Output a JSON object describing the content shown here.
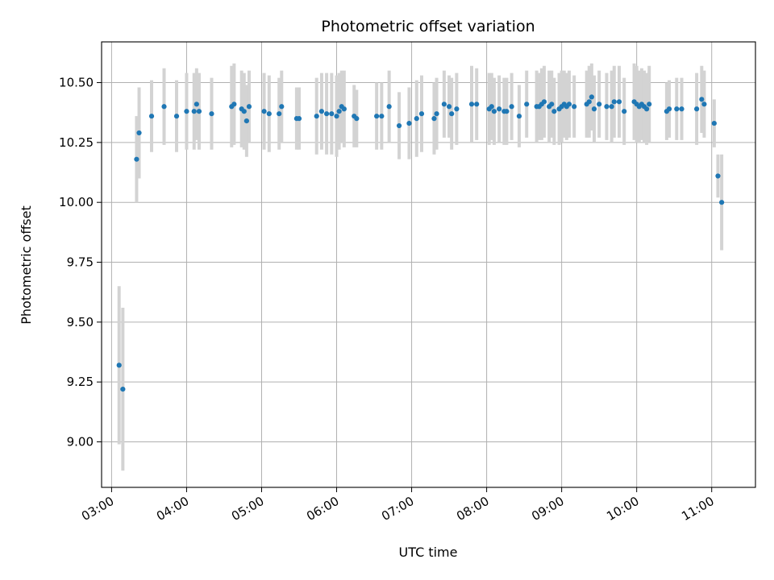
{
  "chart_data": {
    "type": "scatter",
    "title": "Photometric offset variation",
    "xlabel": "UTC time",
    "ylabel": "Photometric offset",
    "x_unit": "UTC time (HH:MM)",
    "xlim": [
      "02:52",
      "11:35"
    ],
    "ylim": [
      8.81,
      10.67
    ],
    "x_ticks": [
      "03:00",
      "04:00",
      "05:00",
      "06:00",
      "07:00",
      "08:00",
      "09:00",
      "10:00",
      "11:00"
    ],
    "y_ticks": [
      "9.00",
      "9.25",
      "9.50",
      "9.75",
      "10.00",
      "10.25",
      "10.50"
    ],
    "grid": true,
    "point_color": "#1f77b4",
    "errorbar_color": "#d3d3d3",
    "series": [
      {
        "x": [
          "03:06",
          "03:09",
          "03:20",
          "03:22",
          "03:32",
          "03:42",
          "03:52",
          "04:00",
          "04:06",
          "04:08",
          "04:10",
          "04:20",
          "04:36",
          "04:38",
          "04:44",
          "04:46",
          "04:48",
          "04:50",
          "05:02",
          "05:06",
          "05:14",
          "05:16",
          "05:28",
          "05:30",
          "05:44",
          "05:48",
          "05:52",
          "05:56",
          "06:00",
          "06:02",
          "06:04",
          "06:06",
          "06:14",
          "06:16",
          "06:32",
          "06:36",
          "06:42",
          "06:50",
          "06:58",
          "07:04",
          "07:08",
          "07:18",
          "07:20",
          "07:26",
          "07:30",
          "07:32",
          "07:36",
          "07:48",
          "07:52",
          "08:02",
          "08:04",
          "08:06",
          "08:10",
          "08:14",
          "08:16",
          "08:20",
          "08:26",
          "08:32",
          "08:40",
          "08:42",
          "08:44",
          "08:46",
          "08:50",
          "08:52",
          "08:54",
          "08:58",
          "09:00",
          "09:02",
          "09:04",
          "09:06",
          "09:10",
          "09:20",
          "09:22",
          "09:24",
          "09:26",
          "09:30",
          "09:36",
          "09:40",
          "09:42",
          "09:46",
          "09:50",
          "09:58",
          "10:00",
          "10:02",
          "10:04",
          "10:06",
          "10:08",
          "10:10",
          "10:24",
          "10:26",
          "10:32",
          "10:36",
          "10:48",
          "10:52",
          "10:54",
          "11:02",
          "11:05",
          "11:08"
        ],
        "y": [
          9.32,
          9.22,
          10.18,
          10.29,
          10.36,
          10.4,
          10.36,
          10.38,
          10.38,
          10.41,
          10.38,
          10.37,
          10.4,
          10.41,
          10.39,
          10.38,
          10.34,
          10.4,
          10.38,
          10.37,
          10.37,
          10.4,
          10.35,
          10.35,
          10.36,
          10.38,
          10.37,
          10.37,
          10.36,
          10.38,
          10.4,
          10.39,
          10.36,
          10.35,
          10.36,
          10.36,
          10.4,
          10.32,
          10.33,
          10.35,
          10.37,
          10.35,
          10.37,
          10.41,
          10.4,
          10.37,
          10.39,
          10.41,
          10.41,
          10.39,
          10.4,
          10.38,
          10.39,
          10.38,
          10.38,
          10.4,
          10.36,
          10.41,
          10.4,
          10.4,
          10.41,
          10.42,
          10.4,
          10.41,
          10.38,
          10.39,
          10.4,
          10.41,
          10.4,
          10.41,
          10.4,
          10.41,
          10.42,
          10.44,
          10.39,
          10.41,
          10.4,
          10.4,
          10.42,
          10.42,
          10.38,
          10.42,
          10.41,
          10.4,
          10.41,
          10.4,
          10.39,
          10.41,
          10.38,
          10.39,
          10.39,
          10.39,
          10.39,
          10.43,
          10.41,
          10.33,
          10.11,
          10.0
        ],
        "yerr": [
          0.33,
          0.34,
          0.18,
          0.19,
          0.15,
          0.16,
          0.15,
          0.16,
          0.16,
          0.15,
          0.16,
          0.15,
          0.17,
          0.17,
          0.16,
          0.16,
          0.15,
          0.15,
          0.16,
          0.16,
          0.15,
          0.15,
          0.13,
          0.13,
          0.16,
          0.16,
          0.17,
          0.17,
          0.17,
          0.16,
          0.15,
          0.16,
          0.13,
          0.12,
          0.14,
          0.14,
          0.15,
          0.14,
          0.15,
          0.16,
          0.16,
          0.15,
          0.15,
          0.14,
          0.13,
          0.15,
          0.15,
          0.16,
          0.15,
          0.15,
          0.14,
          0.14,
          0.14,
          0.14,
          0.14,
          0.14,
          0.13,
          0.14,
          0.15,
          0.14,
          0.15,
          0.15,
          0.15,
          0.14,
          0.14,
          0.15,
          0.15,
          0.14,
          0.14,
          0.14,
          0.13,
          0.14,
          0.15,
          0.14,
          0.14,
          0.14,
          0.14,
          0.15,
          0.15,
          0.15,
          0.14,
          0.16,
          0.16,
          0.15,
          0.15,
          0.15,
          0.15,
          0.16,
          0.12,
          0.12,
          0.13,
          0.13,
          0.15,
          0.14,
          0.14,
          0.1,
          0.09,
          0.2
        ]
      }
    ]
  }
}
